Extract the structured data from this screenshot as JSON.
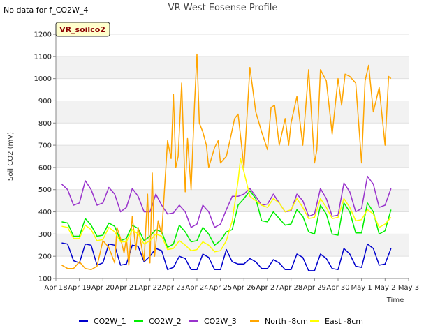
{
  "corner_note": "No data for f_CO2W_4",
  "badge_label": "VR_soilco2",
  "chart_data": {
    "type": "line",
    "title": "VR West Eosense Profile",
    "xlabel": "Time",
    "ylabel": "Soil CO2 (mV)",
    "xlim": [
      0,
      15
    ],
    "ylim": [
      100,
      1200
    ],
    "y_ticks": [
      100,
      200,
      300,
      400,
      500,
      600,
      700,
      800,
      900,
      1000,
      1100,
      1200
    ],
    "x_ticks": [
      {
        "value": 0,
        "label": "Apr 18"
      },
      {
        "value": 1,
        "label": "Apr 19"
      },
      {
        "value": 2,
        "label": "Apr 20"
      },
      {
        "value": 3,
        "label": "Apr 21"
      },
      {
        "value": 4,
        "label": "Apr 22"
      },
      {
        "value": 5,
        "label": "Apr 23"
      },
      {
        "value": 6,
        "label": "Apr 24"
      },
      {
        "value": 7,
        "label": "Apr 25"
      },
      {
        "value": 8,
        "label": "Apr 26"
      },
      {
        "value": 9,
        "label": "Apr 27"
      },
      {
        "value": 10,
        "label": "Apr 28"
      },
      {
        "value": 11,
        "label": "Apr 29"
      },
      {
        "value": 12,
        "label": "Apr 30"
      },
      {
        "value": 13,
        "label": "May 1"
      },
      {
        "value": 14,
        "label": "May 2"
      },
      {
        "value": 15,
        "label": "May 3"
      }
    ],
    "grid": true,
    "legend_position": "bottom",
    "series": [
      {
        "name": "CO2W_1",
        "color": "#0000cc",
        "x": [
          0.25,
          0.5,
          0.75,
          1.0,
          1.25,
          1.5,
          1.75,
          2.0,
          2.25,
          2.5,
          2.75,
          3.0,
          3.25,
          3.5,
          3.75,
          4.0,
          4.25,
          4.5,
          4.75,
          5.0,
          5.25,
          5.5,
          5.75,
          6.0,
          6.25,
          6.5,
          6.75,
          7.0,
          7.25,
          7.5,
          7.75,
          8.0,
          8.25,
          8.5,
          8.75,
          9.0,
          9.25,
          9.5,
          9.75,
          10.0,
          10.25,
          10.5,
          10.75,
          11.0,
          11.25,
          11.5,
          11.75,
          12.0,
          12.25,
          12.5,
          12.75,
          13.0,
          13.25,
          13.5,
          13.75,
          14.0,
          14.25
        ],
        "y": [
          260,
          255,
          180,
          170,
          255,
          250,
          160,
          170,
          255,
          250,
          160,
          165,
          250,
          245,
          175,
          200,
          235,
          225,
          140,
          150,
          200,
          190,
          140,
          140,
          210,
          195,
          140,
          140,
          230,
          175,
          165,
          165,
          190,
          175,
          145,
          145,
          185,
          170,
          140,
          140,
          210,
          195,
          135,
          135,
          210,
          190,
          145,
          140,
          235,
          210,
          155,
          150,
          255,
          235,
          160,
          165,
          235
        ]
      },
      {
        "name": "CO2W_2",
        "color": "#00ee00",
        "x": [
          0.25,
          0.5,
          0.75,
          1.0,
          1.25,
          1.5,
          1.75,
          2.0,
          2.25,
          2.5,
          2.75,
          3.0,
          3.25,
          3.5,
          3.75,
          4.0,
          4.25,
          4.5,
          4.75,
          5.0,
          5.25,
          5.5,
          5.75,
          6.0,
          6.25,
          6.5,
          6.75,
          7.0,
          7.25,
          7.5,
          7.75,
          8.0,
          8.25,
          8.5,
          8.75,
          9.0,
          9.25,
          9.5,
          9.75,
          10.0,
          10.25,
          10.5,
          10.75,
          11.0,
          11.25,
          11.5,
          11.75,
          12.0,
          12.25,
          12.5,
          12.75,
          13.0,
          13.25,
          13.5,
          13.75,
          14.0,
          14.25
        ],
        "y": [
          355,
          350,
          290,
          290,
          370,
          340,
          290,
          295,
          350,
          335,
          270,
          280,
          340,
          325,
          270,
          290,
          320,
          310,
          240,
          255,
          340,
          310,
          265,
          270,
          330,
          300,
          250,
          270,
          310,
          320,
          430,
          460,
          495,
          460,
          360,
          355,
          400,
          370,
          340,
          345,
          410,
          380,
          310,
          300,
          430,
          390,
          300,
          295,
          440,
          400,
          305,
          305,
          440,
          400,
          300,
          315,
          410
        ]
      },
      {
        "name": "CO2W_3",
        "color": "#9933cc",
        "x": [
          0.25,
          0.5,
          0.75,
          1.0,
          1.25,
          1.5,
          1.75,
          2.0,
          2.25,
          2.5,
          2.75,
          3.0,
          3.25,
          3.5,
          3.75,
          4.0,
          4.25,
          4.5,
          4.75,
          5.0,
          5.25,
          5.5,
          5.75,
          6.0,
          6.25,
          6.5,
          6.75,
          7.0,
          7.25,
          7.5,
          7.75,
          8.0,
          8.25,
          8.5,
          8.75,
          9.0,
          9.25,
          9.5,
          9.75,
          10.0,
          10.25,
          10.5,
          10.75,
          11.0,
          11.25,
          11.5,
          11.75,
          12.0,
          12.25,
          12.5,
          12.75,
          13.0,
          13.25,
          13.5,
          13.75,
          14.0,
          14.25
        ],
        "y": [
          525,
          500,
          430,
          440,
          540,
          500,
          430,
          440,
          510,
          480,
          400,
          420,
          505,
          470,
          400,
          400,
          480,
          430,
          390,
          395,
          430,
          400,
          330,
          345,
          430,
          400,
          330,
          345,
          410,
          470,
          470,
          480,
          505,
          470,
          430,
          435,
          480,
          440,
          400,
          405,
          480,
          450,
          380,
          390,
          505,
          460,
          380,
          385,
          530,
          490,
          400,
          415,
          560,
          525,
          420,
          430,
          505
        ]
      },
      {
        "name": "North -8cm",
        "color": "#ffa500",
        "x": [
          0.25,
          0.5,
          0.75,
          1.0,
          1.25,
          1.5,
          1.75,
          2.0,
          2.25,
          2.5,
          2.6,
          2.75,
          2.9,
          3.0,
          3.1,
          3.25,
          3.4,
          3.5,
          3.75,
          3.9,
          4.0,
          4.1,
          4.2,
          4.35,
          4.5,
          4.75,
          4.9,
          5.0,
          5.1,
          5.2,
          5.35,
          5.5,
          5.6,
          5.75,
          5.9,
          6.0,
          6.1,
          6.25,
          6.4,
          6.5,
          6.75,
          6.9,
          7.0,
          7.25,
          7.4,
          7.6,
          7.75,
          8.0,
          8.25,
          8.5,
          8.75,
          9.0,
          9.15,
          9.3,
          9.5,
          9.75,
          9.9,
          10.0,
          10.25,
          10.5,
          10.75,
          11.0,
          11.1,
          11.25,
          11.5,
          11.75,
          12.0,
          12.15,
          12.3,
          12.5,
          12.75,
          13.0,
          13.15,
          13.3,
          13.5,
          13.75,
          14.0,
          14.15,
          14.25
        ],
        "y": [
          160,
          145,
          145,
          175,
          145,
          140,
          155,
          270,
          240,
          170,
          330,
          280,
          215,
          280,
          160,
          380,
          230,
          330,
          180,
          480,
          170,
          575,
          200,
          360,
          300,
          720,
          640,
          930,
          600,
          650,
          980,
          490,
          730,
          500,
          890,
          1110,
          800,
          760,
          700,
          600,
          690,
          720,
          620,
          650,
          720,
          820,
          840,
          600,
          1050,
          850,
          760,
          680,
          870,
          880,
          700,
          820,
          700,
          800,
          920,
          700,
          1040,
          620,
          680,
          1040,
          990,
          750,
          1000,
          880,
          1020,
          1010,
          980,
          620,
          990,
          1060,
          850,
          960,
          700,
          1010,
          1000
        ]
      },
      {
        "name": "East -8cm",
        "color": "#ffff00",
        "x": [
          0.25,
          0.5,
          0.75,
          1.0,
          1.25,
          1.5,
          1.75,
          2.0,
          2.25,
          2.5,
          2.75,
          3.0,
          3.25,
          3.5,
          3.75,
          4.0,
          4.25,
          4.5,
          4.75,
          5.0,
          5.25,
          5.5,
          5.75,
          6.0,
          6.25,
          6.5,
          6.75,
          7.0,
          7.25,
          7.5,
          7.75,
          7.85,
          8.0,
          8.25,
          8.5,
          8.75,
          9.0,
          9.25,
          9.5,
          9.75,
          10.0,
          10.25,
          10.5,
          10.75,
          11.0,
          11.25,
          11.5,
          11.75,
          12.0,
          12.25,
          12.5,
          12.75,
          13.0,
          13.25,
          13.5,
          13.75,
          14.0,
          14.25
        ],
        "y": [
          335,
          330,
          280,
          280,
          340,
          320,
          270,
          275,
          330,
          310,
          265,
          265,
          320,
          300,
          255,
          270,
          300,
          290,
          230,
          235,
          270,
          250,
          225,
          230,
          265,
          250,
          220,
          225,
          270,
          360,
          540,
          640,
          580,
          470,
          450,
          430,
          420,
          460,
          440,
          400,
          410,
          460,
          420,
          370,
          375,
          460,
          420,
          370,
          375,
          460,
          420,
          360,
          365,
          410,
          390,
          330,
          345,
          375
        ]
      }
    ]
  }
}
